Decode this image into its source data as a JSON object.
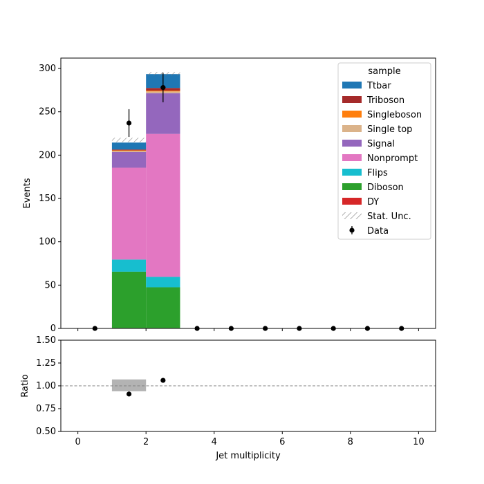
{
  "chart_data": [
    {
      "type": "bar",
      "stacked": true,
      "ylabel": "Events",
      "xlim": [
        -0.5,
        10.5
      ],
      "ylim": [
        0,
        312
      ],
      "yticks": [
        0,
        50,
        100,
        150,
        200,
        250,
        300
      ],
      "bins": [
        [
          1,
          2
        ],
        [
          2,
          3
        ]
      ],
      "series": [
        {
          "name": "DY",
          "color": "#d62728",
          "values": [
            0.5,
            0.5
          ]
        },
        {
          "name": "Diboson",
          "color": "#2ca02c",
          "values": [
            65,
            47
          ]
        },
        {
          "name": "Flips",
          "color": "#17becf",
          "values": [
            14,
            12
          ]
        },
        {
          "name": "Nonprompt",
          "color": "#e377c2",
          "values": [
            106,
            165
          ]
        },
        {
          "name": "Signal",
          "color": "#9467bd",
          "values": [
            18,
            47
          ]
        },
        {
          "name": "Single top",
          "color": "#dbb38a",
          "values": [
            1.5,
            2
          ]
        },
        {
          "name": "Singleboson",
          "color": "#ff7f0e",
          "values": [
            0.5,
            1
          ]
        },
        {
          "name": "Triboson",
          "color": "#a52a2a",
          "values": [
            1,
            3
          ]
        },
        {
          "name": "Ttbar",
          "color": "#1f77b4",
          "values": [
            8,
            16
          ]
        }
      ],
      "stat_unc": [
        {
          "bin": [
            1,
            2
          ],
          "low": 215,
          "high": 220
        },
        {
          "bin": [
            2,
            3
          ],
          "low": 292,
          "high": 296
        }
      ],
      "data": {
        "name": "Data",
        "x": [
          0.5,
          1.5,
          2.5,
          3.5,
          4.5,
          5.5,
          6.5,
          7.5,
          8.5,
          9.5
        ],
        "y": [
          0,
          237,
          278,
          0,
          0,
          0,
          0,
          0,
          0,
          0
        ],
        "yerr": [
          0,
          16,
          17,
          0,
          0,
          0,
          0,
          0,
          0,
          0
        ]
      },
      "legend": {
        "title": "sample",
        "placement": "top-right",
        "entries": [
          "Ttbar",
          "Triboson",
          "Singleboson",
          "Single top",
          "Signal",
          "Nonprompt",
          "Flips",
          "Diboson",
          "DY",
          "Stat. Unc.",
          "Data"
        ]
      }
    },
    {
      "type": "scatter",
      "xlabel": "Jet multiplicity",
      "ylabel": "Ratio",
      "xlim": [
        -0.5,
        10.5
      ],
      "ylim": [
        0.5,
        1.5
      ],
      "xticks": [
        0,
        2,
        4,
        6,
        8,
        10
      ],
      "yticks": [
        0.5,
        0.75,
        1.0,
        1.25,
        1.5
      ],
      "ytick_labels": [
        "0.50",
        "0.75",
        "1.00",
        "1.25",
        "1.50"
      ],
      "reference_line": 1.0,
      "unc_bands": [
        {
          "bin": [
            1,
            2
          ],
          "low": 0.94,
          "high": 1.07
        }
      ],
      "points": {
        "x": [
          1.5,
          2.5
        ],
        "y": [
          0.91,
          1.06
        ]
      }
    }
  ]
}
